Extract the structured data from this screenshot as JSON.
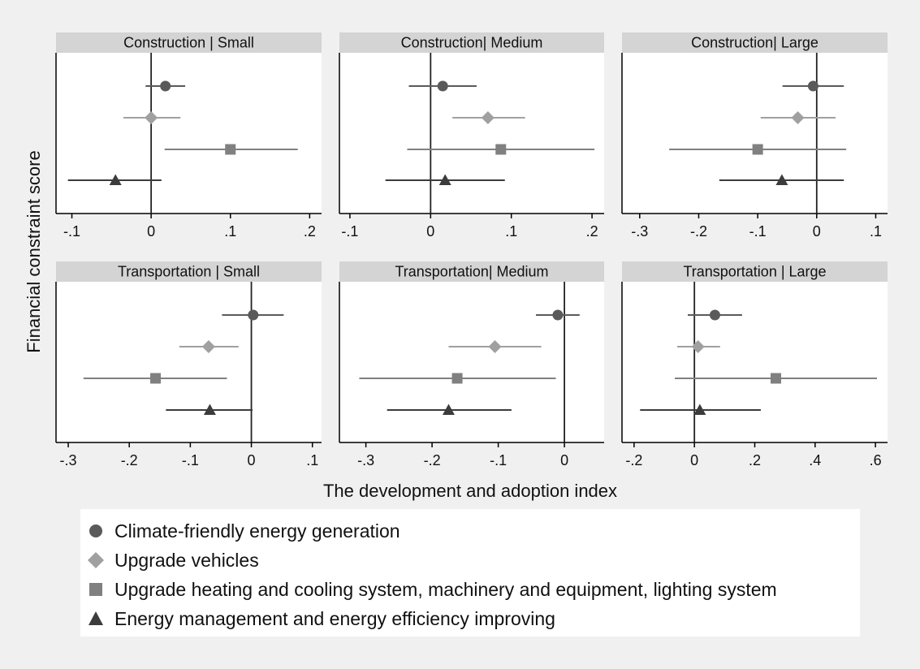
{
  "chart_data": {
    "type": "scatter",
    "subtype": "coefficient-plot-with-confidence-intervals",
    "xlabel": "The development and adoption index",
    "ylabel": "Financial constraint score",
    "grid": false,
    "legend_position": "bottom",
    "series": [
      {
        "name": "Climate-friendly energy generation",
        "marker": "circle",
        "color": "#5a5a5a"
      },
      {
        "name": "Upgrade vehicles",
        "marker": "diamond",
        "color": "#a0a0a0"
      },
      {
        "name": "Upgrade heating and cooling system, machinery and equipment, lighting system",
        "marker": "square",
        "color": "#808080"
      },
      {
        "name": "Energy management and energy efficiency improving",
        "marker": "triangle",
        "color": "#3c3c3c"
      }
    ],
    "panels": [
      {
        "title": "Construction | Small",
        "xlim": [
          -0.12,
          0.215
        ],
        "ticks": [
          -0.1,
          0,
          0.1,
          0.2
        ],
        "tick_labels": [
          "-.1",
          "0",
          ".1",
          ".2"
        ],
        "points": [
          {
            "series": 0,
            "estimate": 0.018,
            "lower": -0.007,
            "upper": 0.043
          },
          {
            "series": 1,
            "estimate": 0.0,
            "lower": -0.035,
            "upper": 0.037
          },
          {
            "series": 2,
            "estimate": 0.1,
            "lower": 0.017,
            "upper": 0.185
          },
          {
            "series": 3,
            "estimate": -0.045,
            "lower": -0.105,
            "upper": 0.013
          }
        ]
      },
      {
        "title": "Construction| Medium",
        "xlim": [
          -0.113,
          0.215
        ],
        "ticks": [
          -0.1,
          0,
          0.1,
          0.2
        ],
        "tick_labels": [
          "-.1",
          "0",
          ".1",
          ".2"
        ],
        "points": [
          {
            "series": 0,
            "estimate": 0.015,
            "lower": -0.027,
            "upper": 0.057
          },
          {
            "series": 1,
            "estimate": 0.071,
            "lower": 0.027,
            "upper": 0.117
          },
          {
            "series": 2,
            "estimate": 0.087,
            "lower": -0.029,
            "upper": 0.203
          },
          {
            "series": 3,
            "estimate": 0.018,
            "lower": -0.056,
            "upper": 0.092
          }
        ]
      },
      {
        "title": "Construction| Large",
        "xlim": [
          -0.33,
          0.12
        ],
        "ticks": [
          -0.3,
          -0.2,
          -0.1,
          0,
          0.1
        ],
        "tick_labels": [
          "-.3",
          "-.2",
          "-.1",
          "0",
          ".1"
        ],
        "points": [
          {
            "series": 0,
            "estimate": -0.006,
            "lower": -0.058,
            "upper": 0.046
          },
          {
            "series": 1,
            "estimate": -0.032,
            "lower": -0.095,
            "upper": 0.032
          },
          {
            "series": 2,
            "estimate": -0.1,
            "lower": -0.25,
            "upper": 0.05
          },
          {
            "series": 3,
            "estimate": -0.059,
            "lower": -0.165,
            "upper": 0.046
          }
        ]
      },
      {
        "title": "Transportation | Small",
        "xlim": [
          -0.32,
          0.115
        ],
        "ticks": [
          -0.3,
          -0.2,
          -0.1,
          0,
          0.1
        ],
        "tick_labels": [
          "-.3",
          "-.2",
          "-.1",
          "0",
          ".1"
        ],
        "points": [
          {
            "series": 0,
            "estimate": 0.003,
            "lower": -0.048,
            "upper": 0.053
          },
          {
            "series": 1,
            "estimate": -0.07,
            "lower": -0.118,
            "upper": -0.021
          },
          {
            "series": 2,
            "estimate": -0.157,
            "lower": -0.275,
            "upper": -0.04
          },
          {
            "series": 3,
            "estimate": -0.068,
            "lower": -0.14,
            "upper": 0.002
          }
        ]
      },
      {
        "title": "Transportation| Medium",
        "xlim": [
          -0.34,
          0.06
        ],
        "ticks": [
          -0.3,
          -0.2,
          -0.1,
          0
        ],
        "tick_labels": [
          "-.3",
          "-.2",
          "-.1",
          "0"
        ],
        "points": [
          {
            "series": 0,
            "estimate": -0.01,
            "lower": -0.043,
            "upper": 0.023
          },
          {
            "series": 1,
            "estimate": -0.105,
            "lower": -0.175,
            "upper": -0.035
          },
          {
            "series": 2,
            "estimate": -0.162,
            "lower": -0.31,
            "upper": -0.013
          },
          {
            "series": 3,
            "estimate": -0.175,
            "lower": -0.268,
            "upper": -0.08
          }
        ]
      },
      {
        "title": "Transportation | Large",
        "xlim": [
          -0.24,
          0.64
        ],
        "ticks": [
          -0.2,
          0,
          0.2,
          0.4,
          0.6
        ],
        "tick_labels": [
          "-.2",
          "0",
          ".2",
          ".4",
          ".6"
        ],
        "points": [
          {
            "series": 0,
            "estimate": 0.068,
            "lower": -0.022,
            "upper": 0.158
          },
          {
            "series": 1,
            "estimate": 0.012,
            "lower": -0.057,
            "upper": 0.085
          },
          {
            "series": 2,
            "estimate": 0.27,
            "lower": -0.065,
            "upper": 0.605
          },
          {
            "series": 3,
            "estimate": 0.018,
            "lower": -0.18,
            "upper": 0.22
          }
        ]
      }
    ]
  }
}
